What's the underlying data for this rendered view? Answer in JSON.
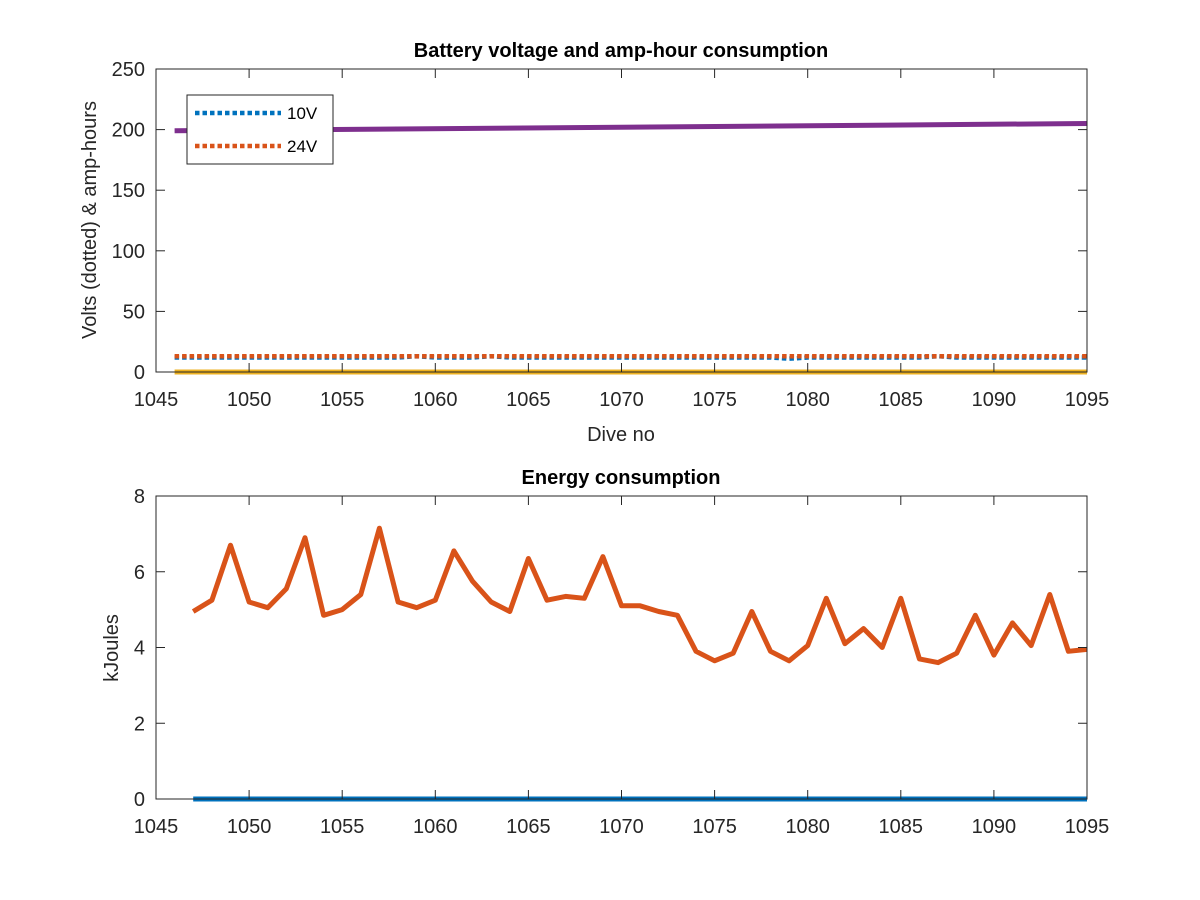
{
  "chart_data": [
    {
      "type": "line",
      "title": "Battery voltage and amp-hour consumption",
      "xlabel": "Dive no",
      "ylabel": "Volts (dotted) & amp-hours",
      "xlim": [
        1045,
        1095
      ],
      "ylim": [
        0,
        250
      ],
      "xticks": [
        "1045",
        "1050",
        "1055",
        "1060",
        "1065",
        "1070",
        "1075",
        "1080",
        "1085",
        "1090",
        "1095"
      ],
      "yticks": [
        "0",
        "50",
        "100",
        "150",
        "200",
        "250"
      ],
      "grid": false,
      "legend_position": "top-left",
      "series": [
        {
          "name": "10V",
          "style": "dotted",
          "color": "#0072BD",
          "x": [
            1046,
            1048,
            1050,
            1052,
            1054,
            1056,
            1058,
            1059,
            1060,
            1062,
            1063,
            1064,
            1066,
            1068,
            1070,
            1072,
            1074,
            1076,
            1078,
            1079,
            1080,
            1082,
            1084,
            1086,
            1087,
            1088,
            1090,
            1092,
            1094,
            1095
          ],
          "values": [
            12,
            12,
            12,
            12,
            12,
            12,
            12,
            13,
            12,
            12,
            13,
            12,
            12,
            12,
            12,
            12,
            12,
            12,
            12,
            11,
            12,
            12,
            12,
            12,
            13,
            12,
            12,
            12,
            12,
            12
          ]
        },
        {
          "name": "24V",
          "style": "dotted",
          "color": "#D95319",
          "x": [
            1046,
            1095
          ],
          "values": [
            13,
            13
          ]
        },
        {
          "style": "solid",
          "color": "#EDB120",
          "x": [
            1046,
            1095
          ],
          "values": [
            0,
            0
          ]
        },
        {
          "style": "solid",
          "color": "#7E2F8E",
          "x": [
            1046,
            1095
          ],
          "values": [
            199,
            205
          ]
        }
      ]
    },
    {
      "type": "line",
      "title": "Energy consumption",
      "xlabel": "",
      "ylabel": "kJoules",
      "xlim": [
        1045,
        1095
      ],
      "ylim": [
        0,
        8
      ],
      "xticks": [
        "1045",
        "1050",
        "1055",
        "1060",
        "1065",
        "1070",
        "1075",
        "1080",
        "1085",
        "1090",
        "1095"
      ],
      "yticks": [
        "0",
        "2",
        "4",
        "6",
        "8"
      ],
      "grid": false,
      "series": [
        {
          "style": "solid",
          "color": "#0072BD",
          "x": [
            1047,
            1095
          ],
          "values": [
            0,
            0
          ]
        },
        {
          "style": "solid",
          "color": "#D95319",
          "x": [
            1047,
            1048,
            1049,
            1050,
            1051,
            1052,
            1053,
            1054,
            1055,
            1056,
            1057,
            1058,
            1059,
            1060,
            1061,
            1062,
            1063,
            1064,
            1065,
            1066,
            1067,
            1068,
            1069,
            1070,
            1071,
            1072,
            1073,
            1074,
            1075,
            1076,
            1077,
            1078,
            1079,
            1080,
            1081,
            1082,
            1083,
            1084,
            1085,
            1086,
            1087,
            1088,
            1089,
            1090,
            1091,
            1092,
            1093,
            1094,
            1095
          ],
          "values": [
            4.95,
            5.25,
            6.7,
            5.2,
            5.05,
            5.55,
            6.9,
            4.85,
            5.0,
            5.4,
            7.15,
            5.2,
            5.05,
            5.25,
            6.55,
            5.75,
            5.2,
            4.95,
            6.35,
            5.25,
            5.35,
            5.3,
            6.4,
            5.1,
            5.1,
            4.95,
            4.85,
            3.9,
            3.65,
            3.85,
            4.95,
            3.9,
            3.65,
            4.05,
            5.3,
            4.1,
            4.5,
            4.0,
            5.3,
            3.7,
            3.6,
            3.85,
            4.85,
            3.8,
            4.65,
            4.05,
            5.4,
            3.9,
            3.95
          ]
        }
      ]
    }
  ]
}
